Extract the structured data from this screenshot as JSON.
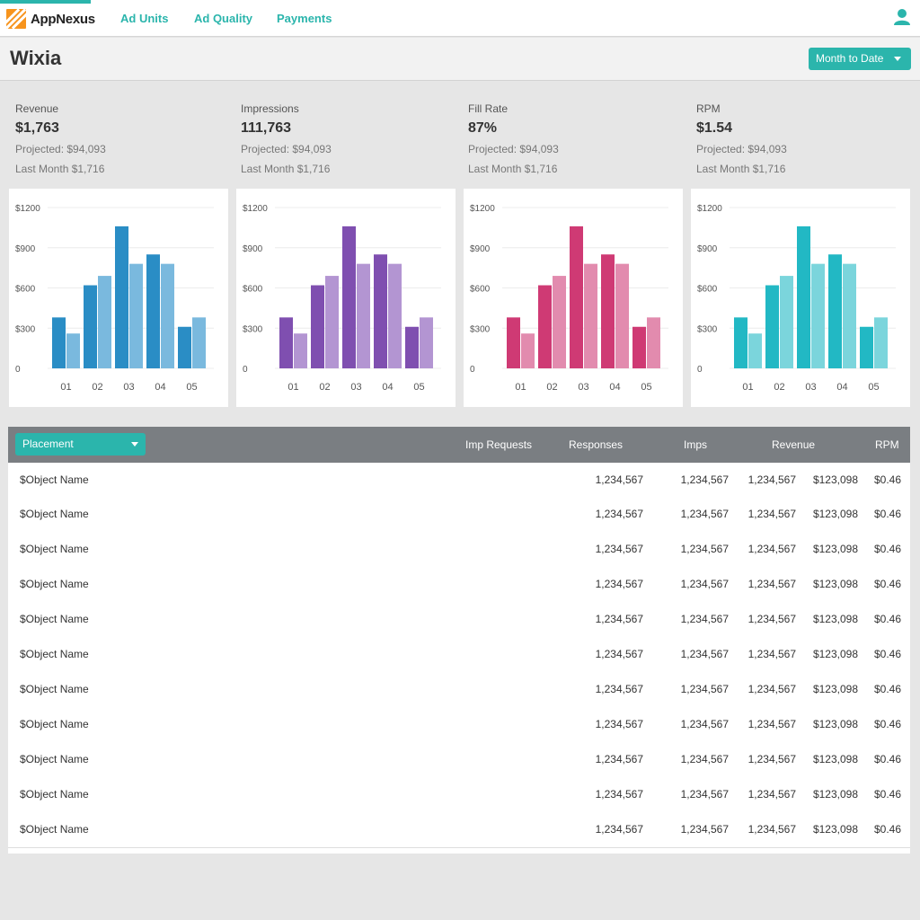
{
  "app": {
    "logo_text": "AppNexus"
  },
  "nav": {
    "links": [
      "Ad Units",
      "Ad Quality",
      "Payments"
    ]
  },
  "header": {
    "title": "Wixia",
    "range_label": "Month to Date"
  },
  "stats": [
    {
      "label": "Revenue",
      "value": "$1,763",
      "projected": "Projected: $94,093",
      "last_month": "Last Month $1,716"
    },
    {
      "label": "Impressions",
      "value": "111,763",
      "projected": "Projected: $94,093",
      "last_month": "Last Month $1,716"
    },
    {
      "label": "Fill Rate",
      "value": "87%",
      "projected": "Projected: $94,093",
      "last_month": "Last Month $1,716"
    },
    {
      "label": "RPM",
      "value": "$1.54",
      "projected": "Projected: $94,093",
      "last_month": "Last Month $1,716"
    }
  ],
  "colors": {
    "accent": "#2bb5ac",
    "chart_revenue": [
      "#2a8dc5",
      "#7ab9de"
    ],
    "chart_impressions": [
      "#7f4fb0",
      "#b395d2"
    ],
    "chart_fill_rate": [
      "#cf3a74",
      "#e28bae"
    ],
    "chart_rpm": [
      "#22b8c4",
      "#7bd5dc"
    ]
  },
  "chart_data": [
    {
      "type": "bar",
      "categories": [
        "01",
        "02",
        "03",
        "04",
        "05"
      ],
      "series": [
        {
          "values": [
            380,
            620,
            1060,
            850,
            310
          ]
        },
        {
          "values": [
            260,
            690,
            780,
            780,
            380
          ]
        }
      ],
      "ylim": [
        0,
        1200
      ],
      "yticks": [
        "$1200",
        "$900",
        "$600",
        "$300",
        "0"
      ],
      "grid": true
    },
    {
      "type": "bar",
      "categories": [
        "01",
        "02",
        "03",
        "04",
        "05"
      ],
      "series": [
        {
          "values": [
            380,
            620,
            1060,
            850,
            310
          ]
        },
        {
          "values": [
            260,
            690,
            780,
            780,
            380
          ]
        }
      ],
      "ylim": [
        0,
        1200
      ],
      "yticks": [
        "$1200",
        "$900",
        "$600",
        "$300",
        "0"
      ],
      "grid": true
    },
    {
      "type": "bar",
      "categories": [
        "01",
        "02",
        "03",
        "04",
        "05"
      ],
      "series": [
        {
          "values": [
            380,
            620,
            1060,
            850,
            310
          ]
        },
        {
          "values": [
            260,
            690,
            780,
            780,
            380
          ]
        }
      ],
      "ylim": [
        0,
        1200
      ],
      "yticks": [
        "$1200",
        "$900",
        "$600",
        "$300",
        "0"
      ],
      "grid": true
    },
    {
      "type": "bar",
      "categories": [
        "01",
        "02",
        "03",
        "04",
        "05"
      ],
      "series": [
        {
          "values": [
            380,
            620,
            1060,
            850,
            310
          ]
        },
        {
          "values": [
            260,
            690,
            780,
            780,
            380
          ]
        }
      ],
      "ylim": [
        0,
        1200
      ],
      "yticks": [
        "$1200",
        "$900",
        "$600",
        "$300",
        "0"
      ],
      "grid": true
    }
  ],
  "table": {
    "placement_label": "Placement",
    "columns": [
      "Imp Requests",
      "Responses",
      "Imps",
      "Revenue",
      "RPM"
    ],
    "rows": [
      [
        "$Object Name",
        "1,234,567",
        "1,234,567",
        "1,234,567",
        "$123,098",
        "$0.46"
      ],
      [
        "$Object Name",
        "1,234,567",
        "1,234,567",
        "1,234,567",
        "$123,098",
        "$0.46"
      ],
      [
        "$Object Name",
        "1,234,567",
        "1,234,567",
        "1,234,567",
        "$123,098",
        "$0.46"
      ],
      [
        "$Object Name",
        "1,234,567",
        "1,234,567",
        "1,234,567",
        "$123,098",
        "$0.46"
      ],
      [
        "$Object Name",
        "1,234,567",
        "1,234,567",
        "1,234,567",
        "$123,098",
        "$0.46"
      ],
      [
        "$Object Name",
        "1,234,567",
        "1,234,567",
        "1,234,567",
        "$123,098",
        "$0.46"
      ],
      [
        "$Object Name",
        "1,234,567",
        "1,234,567",
        "1,234,567",
        "$123,098",
        "$0.46"
      ],
      [
        "$Object Name",
        "1,234,567",
        "1,234,567",
        "1,234,567",
        "$123,098",
        "$0.46"
      ],
      [
        "$Object Name",
        "1,234,567",
        "1,234,567",
        "1,234,567",
        "$123,098",
        "$0.46"
      ],
      [
        "$Object Name",
        "1,234,567",
        "1,234,567",
        "1,234,567",
        "$123,098",
        "$0.46"
      ],
      [
        "$Object Name",
        "1,234,567",
        "1,234,567",
        "1,234,567",
        "$123,098",
        "$0.46"
      ]
    ]
  }
}
